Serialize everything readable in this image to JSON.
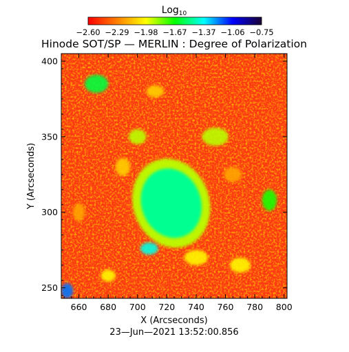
{
  "chart_data": {
    "type": "heatmap",
    "title": "Hinode SOT/SP — MERLIN : Degree of Polarization",
    "xlabel": "X (Arcseconds)",
    "ylabel": "Y (Arcseconds)",
    "xlim": [
      648,
      802
    ],
    "ylim": [
      243,
      405
    ],
    "x_ticks": [
      660,
      680,
      700,
      720,
      740,
      760,
      780,
      800
    ],
    "y_ticks": [
      250,
      300,
      350,
      400
    ],
    "grid": false,
    "colorbar": {
      "label": "Log",
      "label_subscript": "10",
      "placement": "top",
      "range": [
        -2.6,
        -0.75
      ],
      "ticks": [
        "−2.60",
        "−2.29",
        "−1.98",
        "−1.67",
        "−1.37",
        "−1.06",
        "−0.75"
      ],
      "colors": [
        "#ff0000",
        "#ff7f00",
        "#ffff00",
        "#00ff00",
        "#00ffff",
        "#0000ff",
        "#1a0033"
      ]
    },
    "timestamp": "23—Jun—2021 13:52:00.856",
    "features": [
      {
        "kind": "spot",
        "x": 723,
        "y": 306,
        "rx": 14,
        "ry": 17,
        "log10": -0.9
      },
      {
        "kind": "spot-halo",
        "x": 723,
        "y": 306,
        "rx": 26,
        "ry": 30,
        "log10": -1.9
      },
      {
        "kind": "patch",
        "x": 652,
        "y": 248,
        "rx": 4,
        "ry": 5,
        "log10": -1.2
      },
      {
        "kind": "patch",
        "x": 708,
        "y": 276,
        "rx": 6,
        "ry": 4,
        "log10": -1.4
      },
      {
        "kind": "patch",
        "x": 672,
        "y": 385,
        "rx": 8,
        "ry": 6,
        "log10": -1.6
      },
      {
        "kind": "patch",
        "x": 790,
        "y": 308,
        "rx": 5,
        "ry": 7,
        "log10": -1.7
      },
      {
        "kind": "patch",
        "x": 753,
        "y": 350,
        "rx": 9,
        "ry": 6,
        "log10": -1.9
      },
      {
        "kind": "patch",
        "x": 700,
        "y": 350,
        "rx": 6,
        "ry": 5,
        "log10": -1.9
      },
      {
        "kind": "patch",
        "x": 770,
        "y": 265,
        "rx": 7,
        "ry": 5,
        "log10": -2.0
      },
      {
        "kind": "patch",
        "x": 740,
        "y": 270,
        "rx": 8,
        "ry": 5,
        "log10": -2.0
      },
      {
        "kind": "patch",
        "x": 680,
        "y": 258,
        "rx": 5,
        "ry": 4,
        "log10": -2.0
      },
      {
        "kind": "patch",
        "x": 690,
        "y": 330,
        "rx": 5,
        "ry": 6,
        "log10": -2.1
      },
      {
        "kind": "patch",
        "x": 712,
        "y": 380,
        "rx": 6,
        "ry": 4,
        "log10": -2.1
      },
      {
        "kind": "patch",
        "x": 765,
        "y": 325,
        "rx": 6,
        "ry": 5,
        "log10": -2.2
      },
      {
        "kind": "patch",
        "x": 660,
        "y": 300,
        "rx": 4,
        "ry": 6,
        "log10": -2.2
      }
    ]
  }
}
